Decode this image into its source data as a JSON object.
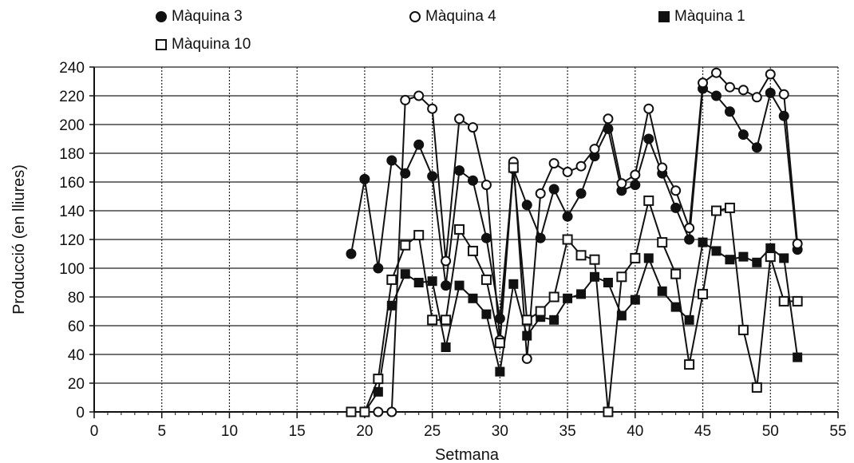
{
  "chart_data": {
    "type": "line",
    "xlabel": "Setmana",
    "ylabel": "Producció  (en  lliures)",
    "xlim": [
      0,
      55
    ],
    "ylim": [
      0,
      240
    ],
    "xticks": [
      0,
      5,
      10,
      15,
      20,
      25,
      30,
      35,
      40,
      45,
      50,
      55
    ],
    "yticks": [
      0,
      20,
      40,
      60,
      80,
      100,
      120,
      140,
      160,
      180,
      200,
      220,
      240
    ],
    "grid": true,
    "legend_position": "top",
    "series": [
      {
        "name": "Màquina 3",
        "marker": "filled-circle",
        "x": [
          19,
          20,
          21,
          22,
          23,
          24,
          25,
          26,
          27,
          28,
          29,
          30,
          31,
          32,
          33,
          34,
          35,
          36,
          37,
          38,
          39,
          40,
          41,
          42,
          43,
          44,
          45,
          46,
          47,
          48,
          49,
          50,
          51,
          52
        ],
        "y": [
          110,
          162,
          100,
          175,
          166,
          186,
          164,
          88,
          168,
          161,
          121,
          65,
          169,
          144,
          121,
          155,
          136,
          152,
          178,
          197,
          154,
          158,
          190,
          166,
          142,
          120,
          225,
          220,
          209,
          193,
          184,
          222,
          206,
          113
        ]
      },
      {
        "name": "Màquina 4",
        "marker": "open-circle",
        "x": [
          21,
          22,
          23,
          24,
          25,
          26,
          27,
          28,
          29,
          30,
          31,
          32,
          33,
          34,
          35,
          36,
          37,
          38,
          39,
          40,
          41,
          42,
          43,
          44,
          45,
          46,
          47,
          48,
          49,
          50,
          51,
          52
        ],
        "y": [
          0,
          0,
          217,
          220,
          211,
          105,
          204,
          198,
          158,
          50,
          174,
          37,
          152,
          173,
          167,
          171,
          183,
          204,
          159,
          165,
          211,
          170,
          154,
          128,
          229,
          236,
          226,
          224,
          219,
          235,
          221,
          117
        ]
      },
      {
        "name": "Màquina 1",
        "marker": "filled-square",
        "x": [
          19,
          20,
          21,
          22,
          23,
          24,
          25,
          26,
          27,
          28,
          29,
          30,
          31,
          32,
          33,
          34,
          35,
          36,
          37,
          38,
          39,
          40,
          41,
          42,
          43,
          44,
          45,
          46,
          47,
          48,
          49,
          50,
          51,
          52
        ],
        "y": [
          0,
          0,
          14,
          74,
          96,
          90,
          91,
          45,
          88,
          79,
          68,
          28,
          89,
          53,
          66,
          64,
          79,
          82,
          94,
          90,
          67,
          78,
          107,
          84,
          73,
          64,
          118,
          112,
          106,
          108,
          104,
          114,
          107,
          38
        ]
      },
      {
        "name": "Màquina 10",
        "marker": "open-square",
        "x": [
          19,
          20,
          21,
          22,
          23,
          24,
          25,
          26,
          27,
          28,
          29,
          30,
          31,
          32,
          33,
          34,
          35,
          36,
          37,
          38,
          39,
          40,
          41,
          42,
          43,
          44,
          45,
          46,
          47,
          48,
          49,
          50,
          51,
          52
        ],
        "y": [
          0,
          0,
          23,
          92,
          116,
          123,
          64,
          64,
          127,
          112,
          92,
          48,
          170,
          64,
          70,
          80,
          120,
          109,
          106,
          0,
          94,
          107,
          147,
          118,
          96,
          33,
          82,
          140,
          142,
          57,
          17,
          108,
          77,
          77
        ]
      }
    ]
  }
}
